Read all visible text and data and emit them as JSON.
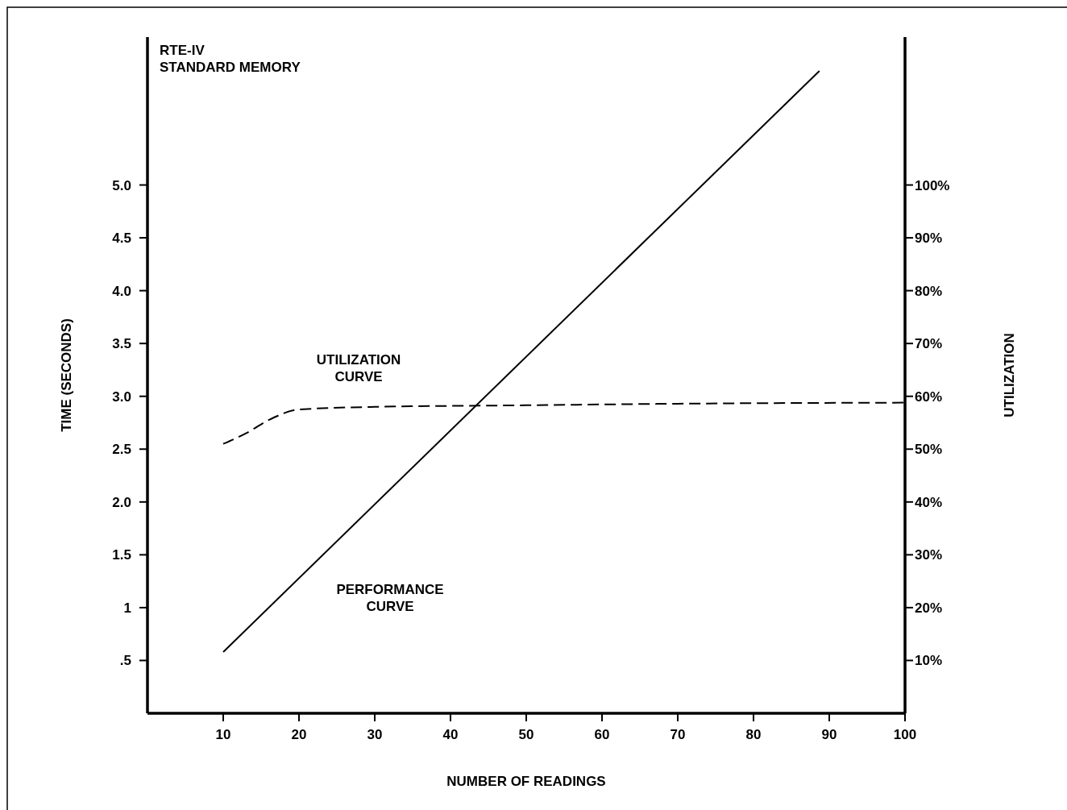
{
  "chart_data": {
    "type": "line",
    "title": "RTE-IV\nSTANDARD MEMORY",
    "xlabel": "NUMBER OF READINGS",
    "ylabel": "TIME (SECONDS)",
    "y2label": "UTILIZATION",
    "xlim": [
      0,
      100
    ],
    "xticks": [
      10,
      20,
      30,
      40,
      50,
      60,
      70,
      80,
      90,
      100
    ],
    "ylim": [
      0,
      6.4
    ],
    "yticks": [
      {
        "value": 0.5,
        "label": ".5"
      },
      1,
      1.5,
      {
        "value": 2,
        "label": "2.0"
      },
      2.5,
      {
        "value": 3,
        "label": "3.0"
      },
      3.5,
      {
        "value": 4,
        "label": "4.0"
      },
      4.5,
      {
        "value": 5,
        "label": "5.0"
      }
    ],
    "y2lim": [
      0,
      128
    ],
    "y2ticks": [
      {
        "value": 10,
        "label": "10%"
      },
      {
        "value": 20,
        "label": "20%"
      },
      {
        "value": 30,
        "label": "30%"
      },
      {
        "value": 40,
        "label": "40%"
      },
      {
        "value": 50,
        "label": "50%"
      },
      {
        "value": 60,
        "label": "60%"
      },
      {
        "value": 70,
        "label": "70%"
      },
      {
        "value": 80,
        "label": "80%"
      },
      {
        "value": 90,
        "label": "90%"
      },
      {
        "value": 100,
        "label": "100%"
      }
    ],
    "series": [
      {
        "color": "#000000",
        "line_style": "solid",
        "x": [
          10,
          88.7
        ],
        "values": [
          0.58,
          6.08
        ]
      },
      {
        "color": "#000000",
        "line_style": "dashed",
        "axis": "y2",
        "x": [
          10,
          13,
          16,
          20,
          30,
          50,
          70,
          100
        ],
        "values": [
          51,
          53,
          55.5,
          57.5,
          58,
          58.3,
          58.6,
          58.8
        ]
      }
    ],
    "annotations": [
      "UTILIZATION\nCURVE",
      "PERFORMANCE\nCURVE"
    ]
  }
}
